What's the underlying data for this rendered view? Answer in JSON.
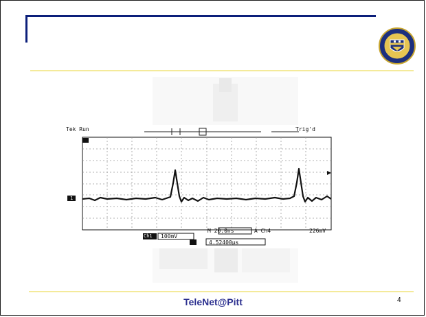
{
  "slide": {
    "footer": "TeleNet@Pitt",
    "page_number": "4"
  },
  "oscilloscope": {
    "status_left": "Tek Run",
    "status_right": "Trig'd",
    "ch1_scale": "100mV",
    "ch1_badge": "Ch1",
    "timebase": "M 20.0ns",
    "trigger_source": "A  Ch4",
    "trigger_level": "226mV",
    "cursor_readout": "4.52400μs",
    "marker_ch": "1"
  },
  "colors": {
    "title_bar": "#0c1f7a",
    "rule": "#f4ea9a",
    "footer_text": "#2b2f8f"
  }
}
